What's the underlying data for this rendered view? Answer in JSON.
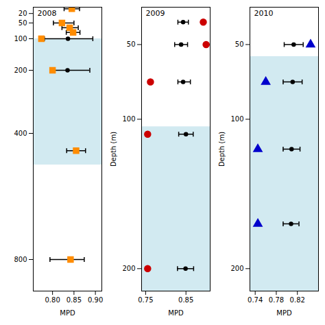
{
  "chart_data": [
    {
      "type": "scatter",
      "annotations": [
        "2008"
      ],
      "xlabel": "MPD",
      "xlim": [
        0.755,
        0.915
      ],
      "xticks": [
        {
          "value": 0.8,
          "label": "0.80"
        },
        0.85,
        {
          "value": 0.9,
          "label": "0.90"
        }
      ],
      "ylim": [
        900,
        0
      ],
      "yticks": [
        20,
        50,
        100,
        200,
        400,
        800
      ],
      "grid": false,
      "bands": [
        {
          "y": [
            100,
            500
          ],
          "color": "#ADD8E6"
        }
      ],
      "series": [
        {
          "type": "errorbar",
          "marker": "circle",
          "color": "black",
          "x": [
            0.845,
            0.822,
            0.84,
            0.848,
            0.836,
            0.835,
            0.855,
            0.842
          ],
          "y": [
            5,
            50,
            65,
            80,
            100,
            200,
            455,
            800
          ],
          "xerr_left": [
            0.018,
            0.02,
            0.018,
            0.016,
            0.055,
            0.038,
            0.022,
            0.048
          ],
          "xerr_right": [
            0.018,
            0.028,
            0.02,
            0.016,
            0.058,
            0.052,
            0.022,
            0.032
          ]
        },
        {
          "type": "scatter",
          "marker": "square",
          "color": "#FF8C00",
          "x": [
            0.845,
            0.822,
            0.84,
            0.848,
            0.774,
            0.8,
            0.855,
            0.842
          ],
          "y": [
            5,
            50,
            65,
            80,
            100,
            200,
            455,
            800
          ]
        }
      ]
    },
    {
      "type": "scatter",
      "annotations": [
        "2009"
      ],
      "xlabel": "MPD",
      "ylabel": "Depth (m)",
      "xlim": [
        0.74,
        0.91
      ],
      "xticks": [
        0.75,
        0.85
      ],
      "ylim": [
        215,
        25
      ],
      "yticks": [
        50,
        100,
        200
      ],
      "grid": false,
      "bands": [
        {
          "y": [
            105,
            215
          ],
          "color": "#ADD8E6"
        }
      ],
      "series": [
        {
          "type": "errorbar",
          "marker": "circle",
          "color": "black",
          "x": [
            0.843,
            0.838,
            0.843,
            0.85,
            0.849
          ],
          "y": [
            35,
            50,
            75,
            110,
            200
          ],
          "xerr_left": [
            0.013,
            0.016,
            0.013,
            0.018,
            0.02
          ],
          "xerr_right": [
            0.013,
            0.016,
            0.018,
            0.018,
            0.02
          ]
        },
        {
          "type": "scatter",
          "marker": "circle",
          "color": "#CC0000",
          "x": [
            0.893,
            0.9,
            0.762,
            0.755,
            0.755
          ],
          "y": [
            35,
            50,
            75,
            110,
            200
          ]
        }
      ]
    },
    {
      "type": "scatter",
      "annotations": [
        "2010"
      ],
      "xlabel": "MPD",
      "ylabel": "Depth (m)",
      "xlim": [
        0.73,
        0.86
      ],
      "xticks": [
        0.74,
        0.78,
        0.82
      ],
      "ylim": [
        215,
        25
      ],
      "yticks": [
        50,
        100,
        200
      ],
      "grid": false,
      "bands": [
        {
          "y": [
            58,
            215
          ],
          "color": "#ADD8E6"
        }
      ],
      "series": [
        {
          "type": "errorbar",
          "marker": "circle",
          "color": "black",
          "x": [
            0.813,
            0.811,
            0.809,
            0.808
          ],
          "y": [
            50,
            75,
            120,
            170
          ],
          "xerr_left": [
            0.018,
            0.018,
            0.016,
            0.015
          ],
          "xerr_right": [
            0.018,
            0.018,
            0.016,
            0.015
          ]
        },
        {
          "type": "scatter",
          "marker": "triangle",
          "color": "#0000CC",
          "x": [
            0.845,
            0.76,
            0.745,
            0.745
          ],
          "y": [
            50,
            75,
            120,
            170
          ]
        }
      ]
    }
  ]
}
